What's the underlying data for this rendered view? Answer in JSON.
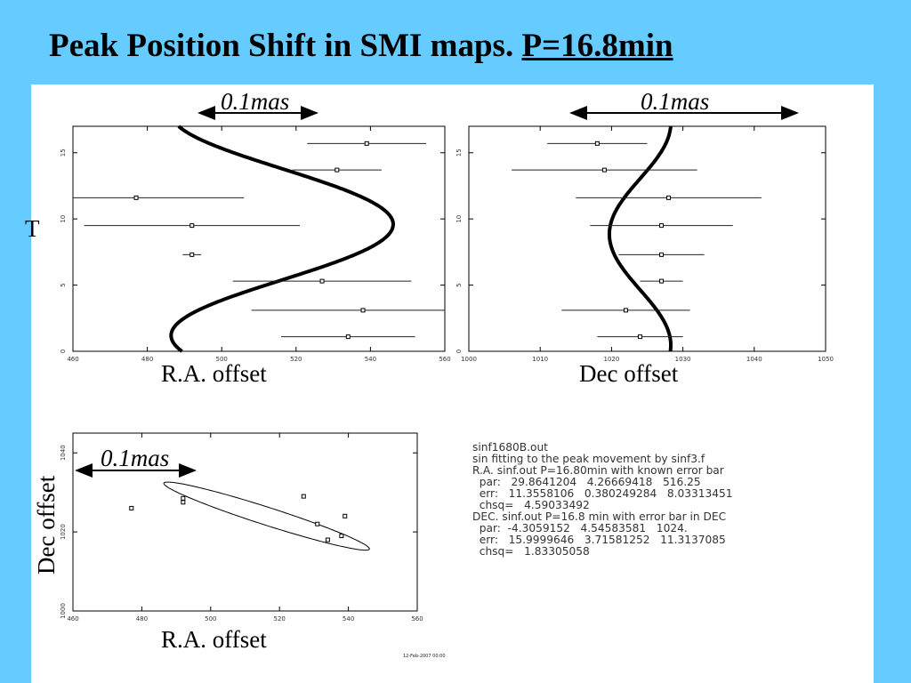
{
  "title": {
    "main": "Peak Position Shift in SMI maps. ",
    "period": "P=16.8min"
  },
  "scale_label": "0.1mas",
  "labels": {
    "t_axis": "T",
    "ra_offset": "R.A. offset",
    "dec_offset": "Dec offset"
  },
  "notes": [
    "sinf1680B.out",
    "sin fitting to the peak movement by sinf3.f",
    "R.A. sinf.out P=16.80min with known error bar",
    "  par:   29.8641204   4.26669418   516.25",
    "  err:   11.3558106   0.380249284   8.03313451",
    "  chsq=   4.59033492",
    "DEC. sinf.out P=16.8 min with error bar in DEC",
    "  par:  -4.3059152   4.54583581   1024.",
    "  err:   15.9999646   3.71581252   11.3137085",
    "  chsq=   1.83305058"
  ],
  "stamp": "12-Feb-2007 00:00",
  "chart_data": [
    {
      "type": "scatter",
      "xlabel": "R.A. offset",
      "ylabel": "T",
      "xlim": [
        460,
        560
      ],
      "ylim": [
        0,
        17
      ],
      "xticks": [
        "460",
        "480",
        "500",
        "520",
        "540",
        "560"
      ],
      "yticks": [
        "0",
        "5",
        "10",
        "15"
      ],
      "points": [
        {
          "x": 539,
          "y": 15.7,
          "err": 16
        },
        {
          "x": 531,
          "y": 13.7,
          "err": 12
        },
        {
          "x": 477,
          "y": 11.6,
          "err": 29
        },
        {
          "x": 492,
          "y": 9.5,
          "err": 29
        },
        {
          "x": 492,
          "y": 7.3,
          "err": 2.5
        },
        {
          "x": 527,
          "y": 5.3,
          "err": 24
        },
        {
          "x": 538,
          "y": 3.1,
          "err": 30
        },
        {
          "x": 534,
          "y": 1.1,
          "err": 18
        }
      ],
      "fit": {
        "amplitude": 29.8641204,
        "phase": 4.26669418,
        "offset": 516.25,
        "period": 16.8
      }
    },
    {
      "type": "scatter",
      "xlabel": "Dec offset",
      "xlim": [
        1000,
        1050
      ],
      "ylim": [
        0,
        17
      ],
      "xticks": [
        "1000",
        "1010",
        "1020",
        "1030",
        "1040",
        "1050"
      ],
      "yticks": [
        "0",
        "5",
        "10",
        "15"
      ],
      "points": [
        {
          "x": 1018,
          "y": 15.7,
          "err": 7
        },
        {
          "x": 1019,
          "y": 13.7,
          "err": 13
        },
        {
          "x": 1028,
          "y": 11.6,
          "err": 13
        },
        {
          "x": 1027,
          "y": 9.5,
          "err": 10
        },
        {
          "x": 1027,
          "y": 7.3,
          "err": 6
        },
        {
          "x": 1027,
          "y": 5.3,
          "err": 3
        },
        {
          "x": 1022,
          "y": 3.1,
          "err": 9
        },
        {
          "x": 1024,
          "y": 1.1,
          "err": 6
        }
      ],
      "fit": {
        "amplitude": -4.3059152,
        "phase": 4.54583581,
        "offset": 1024.0,
        "period": 16.8
      }
    },
    {
      "type": "scatter",
      "xlabel": "R.A. offset",
      "ylabel": "Dec offset",
      "xlim": [
        460,
        560
      ],
      "ylim": [
        1000,
        1045
      ],
      "xticks": [
        "460",
        "480",
        "500",
        "520",
        "540",
        "560"
      ],
      "yticks": [
        "1000",
        "1020",
        "1040"
      ],
      "points": [
        {
          "x": 477,
          "y": 1026
        },
        {
          "x": 492,
          "y": 1027.5
        },
        {
          "x": 492,
          "y": 1028.5
        },
        {
          "x": 527,
          "y": 1029
        },
        {
          "x": 531,
          "y": 1022
        },
        {
          "x": 534,
          "y": 1018
        },
        {
          "x": 538,
          "y": 1019
        },
        {
          "x": 539,
          "y": 1024
        }
      ]
    }
  ]
}
